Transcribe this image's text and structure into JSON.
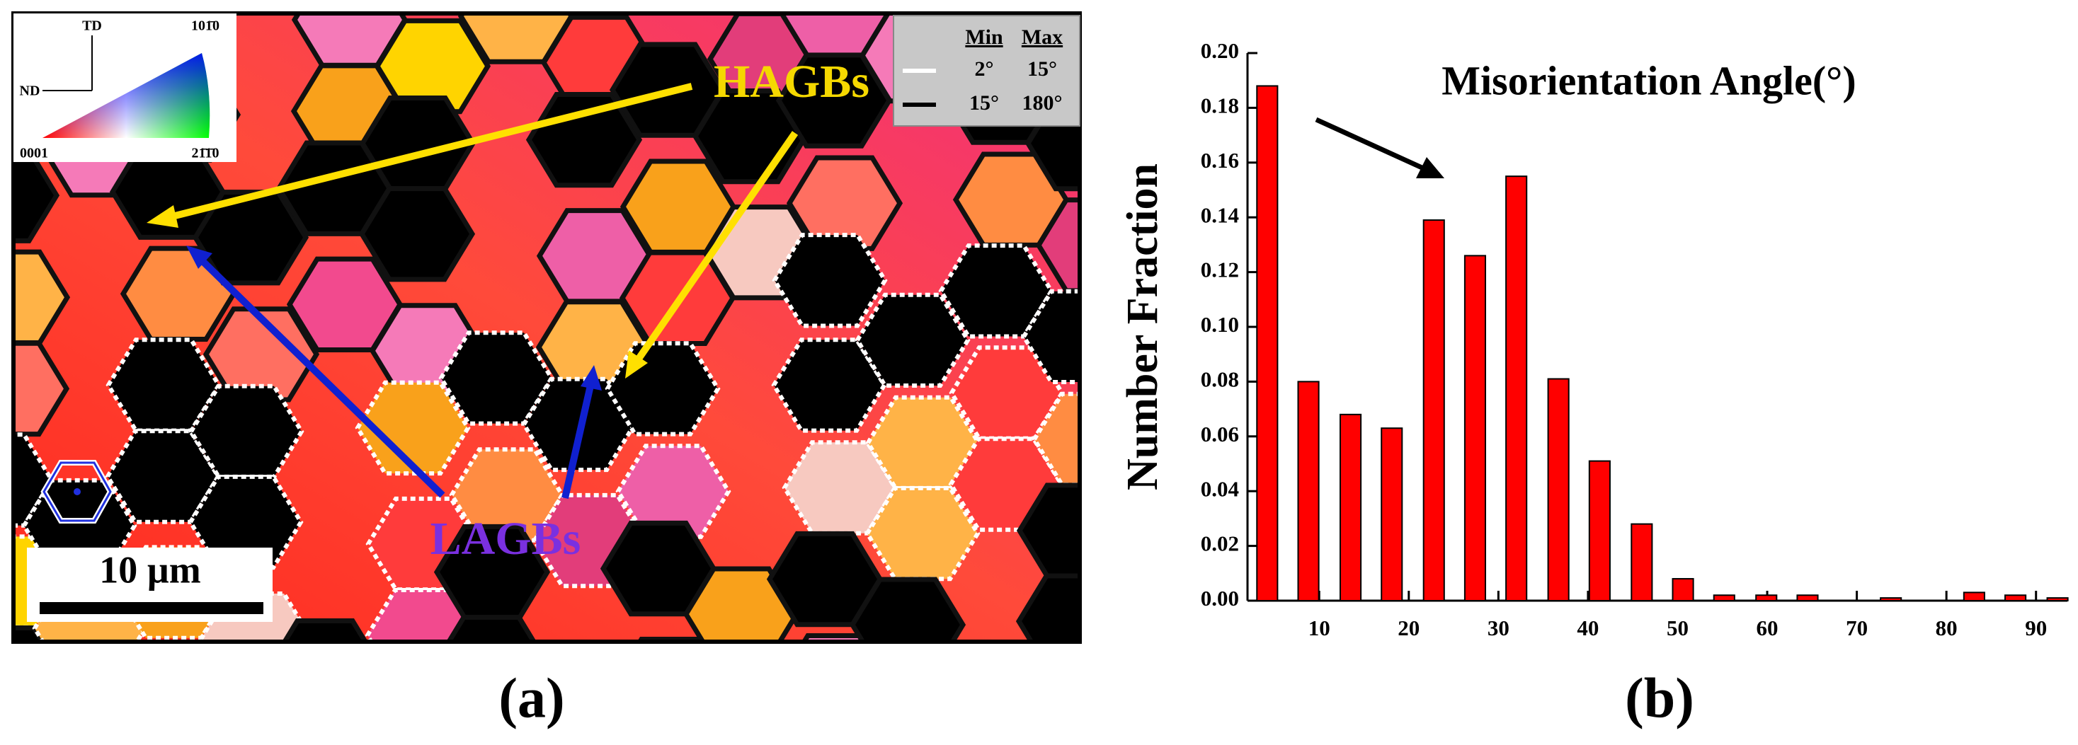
{
  "map": {
    "ipf": {
      "td": "TD",
      "nd": "ND",
      "corner_top": "101̄0",
      "corner_left": "0001",
      "corner_right": "21̄1̄0"
    },
    "legend": {
      "headers": [
        "Min",
        "Max"
      ],
      "rows": [
        [
          "2°",
          "15°"
        ],
        [
          "15°",
          "180°"
        ]
      ]
    },
    "labels": [
      "HAGBs",
      "LAGBs"
    ],
    "scale_bar": "10 µm"
  },
  "panel_labels": [
    "(a)",
    "(b)"
  ],
  "chart_data": {
    "type": "bar",
    "annotation": "Misorientation Angle(°)",
    "y_label": "Number Fraction",
    "x": [
      4.2,
      8.8,
      13.5,
      18.1,
      22.8,
      27.4,
      32.0,
      36.7,
      41.3,
      46.0,
      50.6,
      55.2,
      59.9,
      64.5,
      69.2,
      73.8,
      78.4,
      83.1,
      87.7,
      92.4
    ],
    "values": [
      0.188,
      0.08,
      0.068,
      0.063,
      0.139,
      0.126,
      0.155,
      0.081,
      0.051,
      0.028,
      0.008,
      0.002,
      0.002,
      0.002,
      0,
      0.001,
      0,
      0.003,
      0.002,
      0.001
    ],
    "color": "#ff0000",
    "xlim": [
      2,
      93.5
    ],
    "xticks": [
      10,
      20,
      30,
      40,
      50,
      60,
      70,
      80,
      90
    ],
    "ylim": [
      0,
      0.2
    ],
    "yticks": [
      {
        "value": 0,
        "label": "0.00"
      },
      {
        "value": 0.02,
        "label": "0.02"
      },
      {
        "value": 0.04,
        "label": "0.04"
      },
      {
        "value": 0.06,
        "label": "0.06"
      },
      {
        "value": 0.08,
        "label": "0.08"
      },
      {
        "value": 0.1,
        "label": "0.10"
      },
      {
        "value": 0.12,
        "label": "0.12"
      },
      {
        "value": 0.14,
        "label": "0.14"
      },
      {
        "value": 0.16,
        "label": "0.16"
      },
      {
        "value": 0.18,
        "label": "0.18"
      },
      {
        "value": 0.2,
        "label": "0.20"
      }
    ]
  }
}
